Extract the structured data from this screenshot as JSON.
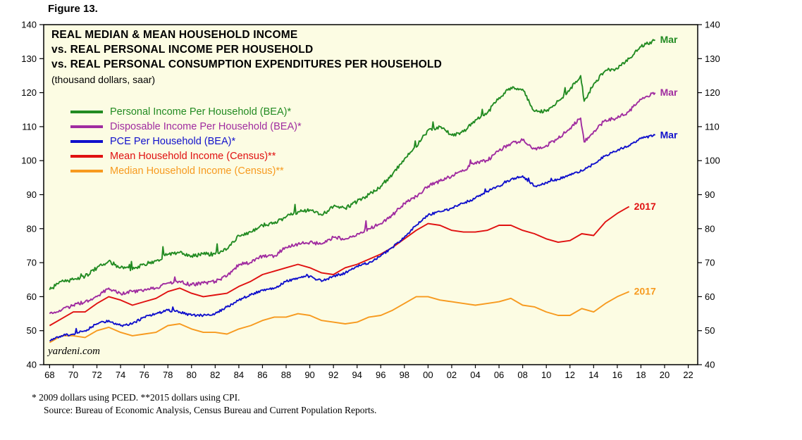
{
  "figure_label": "Figure 13.",
  "watermark": "yardeni.com",
  "footnotes": [
    "* 2009 dollars using PCED. **2015 dollars using CPI.",
    "Source: Bureau of Economic Analysis, Census Bureau and Current Population Reports."
  ],
  "chart_data": {
    "type": "line",
    "title_lines": [
      "REAL MEDIAN & MEAN HOUSEHOLD INCOME",
      "vs. REAL PERSONAL INCOME PER HOUSEHOLD",
      "vs. REAL PERSONAL CONSUMPTION EXPENDITURES PER HOUSEHOLD"
    ],
    "subtitle": "(thousand dollars, saar)",
    "ylim": [
      40,
      140
    ],
    "xlim": [
      1967.5,
      2022.8
    ],
    "y_ticks": [
      40,
      50,
      60,
      70,
      80,
      90,
      100,
      110,
      120,
      130,
      140
    ],
    "x_ticks": [
      1968,
      1970,
      1972,
      1974,
      1976,
      1978,
      1980,
      1982,
      1984,
      1986,
      1988,
      1990,
      1992,
      1994,
      1996,
      1998,
      2000,
      2002,
      2004,
      2006,
      2008,
      2010,
      2012,
      2014,
      2016,
      2018,
      2020,
      2022
    ],
    "x_tick_labels": [
      "68",
      "70",
      "72",
      "74",
      "76",
      "78",
      "80",
      "82",
      "84",
      "86",
      "88",
      "90",
      "92",
      "94",
      "96",
      "98",
      "00",
      "02",
      "04",
      "06",
      "08",
      "10",
      "12",
      "14",
      "16",
      "18",
      "20",
      "22"
    ],
    "grid": false,
    "plot_bg": "#FCFCE3",
    "legend_position": "top-left",
    "series": [
      {
        "name": "Personal Income Per Household (BEA)*",
        "color": "#228B22",
        "end_label": "Mar",
        "jitter": 0.55,
        "x": [
          1968,
          1969,
          1970,
          1971,
          1972,
          1973,
          1974,
          1975,
          1976,
          1977,
          1978,
          1979,
          1980,
          1981,
          1982,
          1983,
          1984,
          1985,
          1986,
          1987,
          1988,
          1989,
          1990,
          1991,
          1992,
          1993,
          1994,
          1995,
          1996,
          1997,
          1998,
          1999,
          2000,
          2001,
          2002,
          2003,
          2004,
          2005,
          2006,
          2007,
          2008,
          2009,
          2010,
          2011,
          2012,
          2012.9,
          2013.2,
          2014,
          2015,
          2016,
          2017,
          2018,
          2019.2
        ],
        "values": [
          62,
          64.5,
          65,
          66,
          68.5,
          70.5,
          68.5,
          68,
          69.5,
          70.5,
          72.5,
          73,
          72,
          72.5,
          72.5,
          74,
          78,
          79,
          81,
          81.5,
          83.5,
          85,
          85.5,
          84,
          86.5,
          86,
          88,
          90,
          92.5,
          96,
          100.5,
          104,
          109,
          110,
          107.5,
          108.5,
          112,
          114,
          118.5,
          121.5,
          121,
          114.5,
          114.5,
          117.5,
          121,
          125,
          117.5,
          122.5,
          126.5,
          127,
          130,
          133.5,
          135.5
        ]
      },
      {
        "name": "Disposable Income Per Household (BEA)*",
        "color": "#A02CA0",
        "end_label": "Mar",
        "jitter": 0.5,
        "x": [
          1968,
          1969,
          1970,
          1971,
          1972,
          1973,
          1974,
          1975,
          1976,
          1977,
          1978,
          1979,
          1980,
          1981,
          1982,
          1983,
          1984,
          1985,
          1986,
          1987,
          1988,
          1989,
          1990,
          1991,
          1992,
          1993,
          1994,
          1995,
          1996,
          1997,
          1998,
          1999,
          2000,
          2001,
          2002,
          2003,
          2004,
          2005,
          2006,
          2007,
          2008,
          2009,
          2010,
          2011,
          2012,
          2012.9,
          2013.2,
          2014,
          2015,
          2016,
          2017,
          2018,
          2019.2
        ],
        "values": [
          55,
          56,
          57.5,
          58.5,
          60,
          62.5,
          61,
          61.5,
          62,
          62.5,
          64,
          64.5,
          63.5,
          64,
          64.5,
          66,
          69.5,
          70,
          72,
          72,
          74.5,
          75.5,
          76,
          75.5,
          77.5,
          77,
          78.5,
          80,
          81.5,
          84,
          87.5,
          89.5,
          92.5,
          94,
          95.5,
          97,
          99.5,
          100,
          103,
          105,
          106,
          103.5,
          104.5,
          106.5,
          109.5,
          112.5,
          105.5,
          108.5,
          112,
          112.5,
          114.5,
          118,
          120
        ]
      },
      {
        "name": "PCE Per Household (BEA)*",
        "color": "#1010CC",
        "end_label": "Mar",
        "jitter": 0.35,
        "x": [
          1968,
          1969,
          1970,
          1971,
          1972,
          1973,
          1974,
          1975,
          1976,
          1977,
          1978,
          1979,
          1980,
          1981,
          1982,
          1983,
          1984,
          1985,
          1986,
          1987,
          1988,
          1989,
          1990,
          1991,
          1992,
          1993,
          1994,
          1995,
          1996,
          1997,
          1998,
          1999,
          2000,
          2001,
          2002,
          2003,
          2004,
          2005,
          2006,
          2007,
          2008,
          2009,
          2010,
          2011,
          2012,
          2013,
          2014,
          2015,
          2016,
          2017,
          2018,
          2019.2
        ],
        "values": [
          47,
          48.5,
          49,
          50,
          52,
          53,
          51.5,
          52,
          54,
          55,
          56,
          55.5,
          54.5,
          54.5,
          55,
          57,
          59,
          60.5,
          62,
          62.5,
          64.5,
          65.5,
          66,
          64.5,
          66,
          67,
          69,
          70,
          72,
          74.5,
          77.5,
          81,
          84,
          85,
          86,
          87.5,
          89,
          91,
          92.5,
          94.5,
          95.5,
          92.5,
          93.5,
          94.5,
          96,
          97,
          99,
          101.5,
          103,
          104.5,
          106.5,
          107.5
        ]
      },
      {
        "name": "Mean Household Income (Census)**",
        "color": "#E01010",
        "end_label": "2017",
        "jitter": 0,
        "x": [
          1968,
          1969,
          1970,
          1971,
          1972,
          1973,
          1974,
          1975,
          1976,
          1977,
          1978,
          1979,
          1980,
          1981,
          1982,
          1983,
          1984,
          1985,
          1986,
          1987,
          1988,
          1989,
          1990,
          1991,
          1992,
          1993,
          1994,
          1995,
          1996,
          1997,
          1998,
          1999,
          2000,
          2001,
          2002,
          2003,
          2004,
          2005,
          2006,
          2007,
          2008,
          2009,
          2010,
          2011,
          2012,
          2013,
          2014,
          2015,
          2016,
          2017
        ],
        "values": [
          51.5,
          53.5,
          55.5,
          55.5,
          58,
          60,
          59,
          57.5,
          58.5,
          59.5,
          61.5,
          62.5,
          61,
          60,
          60.5,
          61,
          63,
          64.5,
          66.5,
          67.5,
          68.5,
          69.5,
          68.5,
          67,
          66.5,
          68.5,
          69.5,
          71,
          72.5,
          74.5,
          77,
          79.5,
          81.5,
          81,
          79.5,
          79,
          79,
          79.5,
          81,
          81,
          79.5,
          78.5,
          77,
          76,
          76.5,
          78.5,
          78,
          82,
          84.5,
          86.5
        ]
      },
      {
        "name": "Median Household Income (Census)**",
        "color": "#F79A1F",
        "end_label": "2017",
        "jitter": 0,
        "x": [
          1968,
          1969,
          1970,
          1971,
          1972,
          1973,
          1974,
          1975,
          1976,
          1977,
          1978,
          1979,
          1980,
          1981,
          1982,
          1983,
          1984,
          1985,
          1986,
          1987,
          1988,
          1989,
          1990,
          1991,
          1992,
          1993,
          1994,
          1995,
          1996,
          1997,
          1998,
          1999,
          2000,
          2001,
          2002,
          2003,
          2004,
          2005,
          2006,
          2007,
          2008,
          2009,
          2010,
          2011,
          2012,
          2013,
          2014,
          2015,
          2016,
          2017
        ],
        "values": [
          46.5,
          48.5,
          48.5,
          48,
          50,
          51,
          49.5,
          48.5,
          49,
          49.5,
          51.5,
          52,
          50.5,
          49.5,
          49.5,
          49,
          50.5,
          51.5,
          53,
          54,
          54,
          55,
          54.5,
          53,
          52.5,
          52,
          52.5,
          54,
          54.5,
          56,
          58,
          60,
          60,
          59,
          58.5,
          58,
          57.5,
          58,
          58.5,
          59.5,
          57.5,
          57,
          55.5,
          54.5,
          54.5,
          56.5,
          55.5,
          58,
          60,
          61.5
        ]
      }
    ]
  }
}
